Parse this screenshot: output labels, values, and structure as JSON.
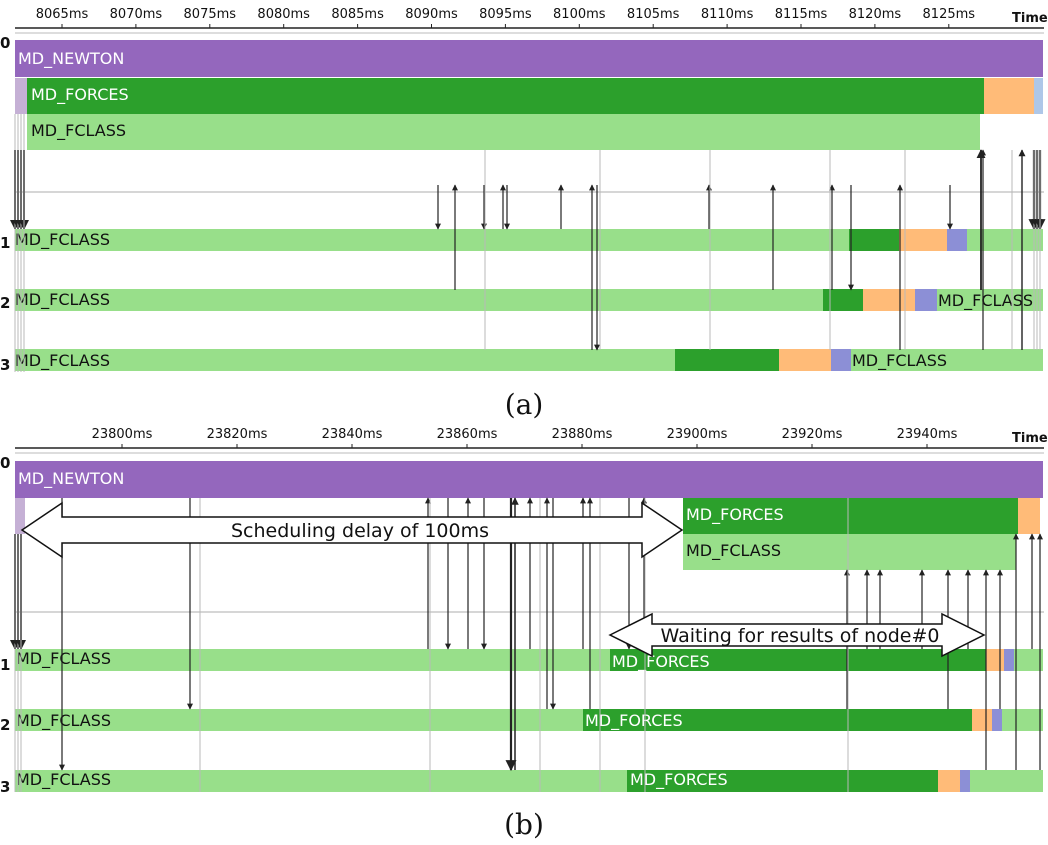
{
  "colors": {
    "newton": "#9467bd",
    "forces": "#2ca02c",
    "fclass": "#98df8a",
    "wait": "#ffbb78",
    "comm": "#aec7e8",
    "comm_dark": "#8c8fd6",
    "axis": "#222222",
    "arrow": "#222222",
    "text_light": "#ffffff",
    "text_dark": "#111111"
  },
  "time_label": "Time",
  "panels": [
    {
      "id": "a",
      "caption": "(a)",
      "ticks": [
        "8065ms",
        "8070ms",
        "8075ms",
        "8080ms",
        "8085ms",
        "8090ms",
        "8095ms",
        "8100ms",
        "8105ms",
        "8110ms",
        "8115ms",
        "8120ms",
        "8125ms"
      ],
      "row_labels": [
        "0",
        "1",
        "2",
        "3"
      ],
      "bars": [
        {
          "label": "MD_NEWTON"
        },
        {
          "label": "MD_FORCES"
        },
        {
          "label": "MD_FCLASS"
        },
        {
          "label": "MD_FCLASS"
        },
        {
          "label": "MD_FCLASS"
        },
        {
          "label": "MD_FCLASS"
        },
        {
          "label": "MD_FCLASS"
        },
        {
          "label": "MD_FCLASS"
        }
      ]
    },
    {
      "id": "b",
      "caption": "(b)",
      "ticks": [
        "23800ms",
        "23820ms",
        "23840ms",
        "23860ms",
        "23880ms",
        "23900ms",
        "23920ms",
        "23940ms"
      ],
      "row_labels": [
        "0",
        "1",
        "2",
        "3"
      ],
      "bars": [
        {
          "label": "MD_NEWTON"
        },
        {
          "label": "MD_FORCES"
        },
        {
          "label": "MD_FCLASS"
        },
        {
          "label": "MD_FCLASS"
        },
        {
          "label": "MD_FORCES"
        },
        {
          "label": "MD_FCLASS"
        },
        {
          "label": "MD_FORCES"
        },
        {
          "label": "MD_FCLASS"
        },
        {
          "label": "MD_FORCES"
        }
      ],
      "annotations": [
        {
          "text": "Scheduling delay of 100ms"
        },
        {
          "text": "Waiting for results of node#0"
        }
      ]
    }
  ]
}
